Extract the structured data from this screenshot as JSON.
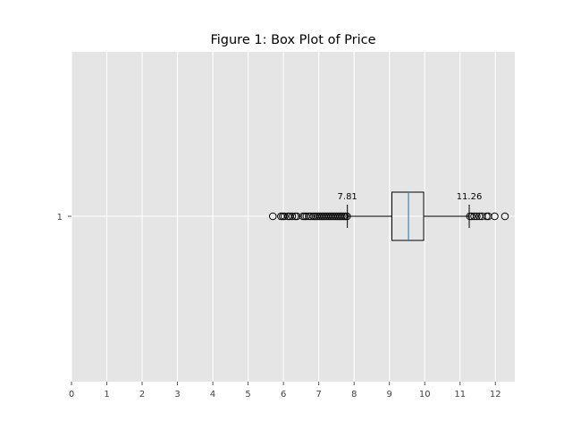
{
  "chart_data": {
    "type": "boxplot",
    "orientation": "horizontal",
    "title": "Figure 1: Box Plot of Price",
    "xlabel": "",
    "ylabel": "",
    "xlim": [
      0,
      12.55
    ],
    "x_ticks": [
      0,
      1,
      2,
      3,
      4,
      5,
      6,
      7,
      8,
      9,
      10,
      11,
      12
    ],
    "y_tick_labels": [
      "1"
    ],
    "grid": true,
    "box": {
      "category": "1",
      "whisker_low": 7.81,
      "q1": 9.07,
      "median": 9.54,
      "q3": 9.97,
      "whisker_high": 11.26
    },
    "outliers": [
      5.7,
      5.93,
      5.98,
      6.03,
      6.13,
      6.18,
      6.25,
      6.33,
      6.38,
      6.55,
      6.6,
      6.65,
      6.72,
      6.78,
      6.85,
      6.9,
      6.95,
      7.0,
      7.05,
      7.1,
      7.15,
      7.2,
      7.25,
      7.3,
      7.35,
      7.4,
      7.45,
      7.5,
      7.55,
      7.6,
      7.65,
      7.7,
      7.75,
      7.8,
      11.28,
      11.33,
      11.4,
      11.47,
      11.55,
      11.62,
      11.75,
      11.8,
      11.98,
      12.27
    ],
    "annotations": [
      {
        "value": 7.81,
        "text": "7.81"
      },
      {
        "value": 11.26,
        "text": "11.26"
      }
    ],
    "colors": {
      "plot_background": "#e5e5e5",
      "grid": "#ffffff",
      "box_edge": "#000000",
      "median": "#348abd",
      "outlier_edge": "#000000"
    }
  }
}
